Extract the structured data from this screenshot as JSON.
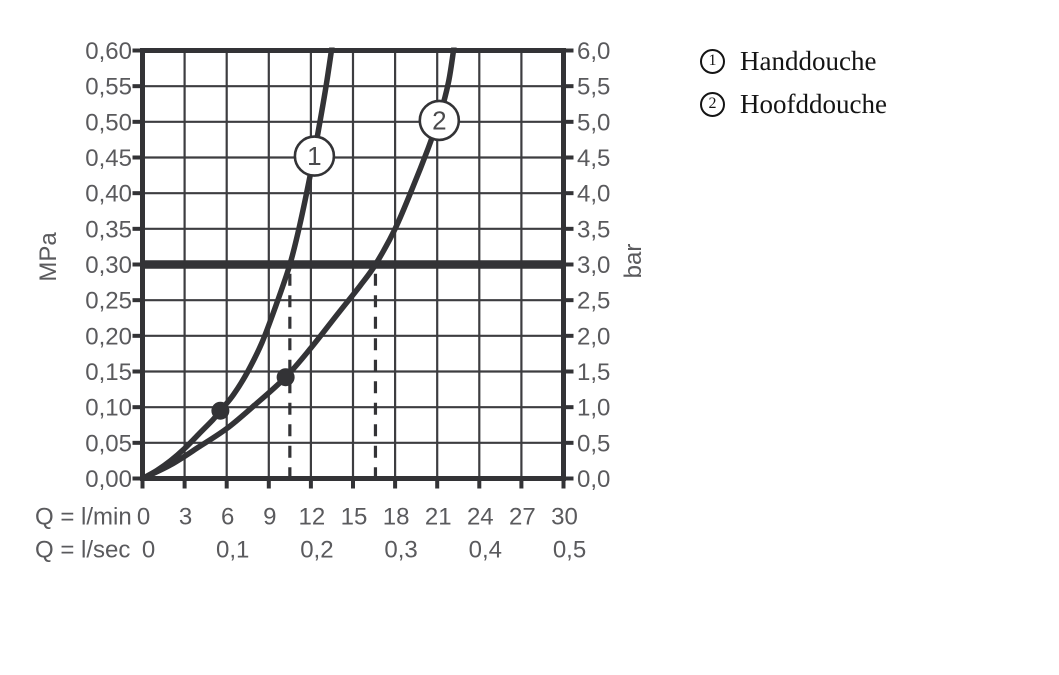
{
  "legend": {
    "items": [
      {
        "marker": "1",
        "label": "Handdouche"
      },
      {
        "marker": "2",
        "label": "Hoofddouche"
      }
    ]
  },
  "chart_data": {
    "type": "line",
    "title": "",
    "x_axis": {
      "label_primary": "Q = l/min",
      "label_secondary": "Q = l/sec",
      "min": 0,
      "max": 30,
      "step": 3,
      "ticks_primary": [
        "0",
        "3",
        "6",
        "9",
        "12",
        "15",
        "18",
        "21",
        "24",
        "27",
        "30"
      ],
      "ticks_secondary": [
        {
          "text": "0",
          "q": 0
        },
        {
          "text": "0,1",
          "q": 6
        },
        {
          "text": "0,2",
          "q": 12
        },
        {
          "text": "0,3",
          "q": 18
        },
        {
          "text": "0,4",
          "q": 24
        },
        {
          "text": "0,5",
          "q": 30
        }
      ]
    },
    "y_axis_left": {
      "label": "MPa",
      "min": 0,
      "max": 0.6,
      "step": 0.05,
      "tick_labels": [
        "0,00",
        "0,05",
        "0,10",
        "0,15",
        "0,20",
        "0,25",
        "0,30",
        "0,35",
        "0,40",
        "0,45",
        "0,50",
        "0,55",
        "0,60"
      ]
    },
    "y_axis_right": {
      "label": "bar",
      "min": 0,
      "max": 6,
      "step": 0.5,
      "tick_labels": [
        "0,0",
        "0,5",
        "1,0",
        "1,5",
        "2,0",
        "2,5",
        "3,0",
        "3,5",
        "4,0",
        "4,5",
        "5,0",
        "5,5",
        "6,0"
      ]
    },
    "reference_line": {
      "y_mpa": 0.3,
      "y_bar": 3.0
    },
    "grid": true,
    "legend_position": "top-right",
    "series": [
      {
        "name": "Handdouche",
        "marker": "1",
        "marker_at": [
          12.25,
          0.452
        ],
        "dot_at": [
          5.55,
          0.095
        ],
        "dashed_line_x": 10.5,
        "points": [
          [
            0,
            0
          ],
          [
            1,
            0.011
          ],
          [
            2,
            0.025
          ],
          [
            3,
            0.042
          ],
          [
            4,
            0.062
          ],
          [
            5,
            0.082
          ],
          [
            5.55,
            0.095
          ],
          [
            6.5,
            0.118
          ],
          [
            7.5,
            0.15
          ],
          [
            8.5,
            0.19
          ],
          [
            9.5,
            0.242
          ],
          [
            10.5,
            0.3
          ],
          [
            11.2,
            0.355
          ],
          [
            12,
            0.43
          ],
          [
            12.6,
            0.495
          ],
          [
            13.1,
            0.552
          ],
          [
            13.5,
            0.605
          ]
        ]
      },
      {
        "name": "Hoofddouche",
        "marker": "2",
        "marker_at": [
          21.15,
          0.502
        ],
        "dot_at": [
          10.2,
          0.142
        ],
        "dashed_line_x": 16.6,
        "points": [
          [
            0,
            0
          ],
          [
            2,
            0.019
          ],
          [
            4,
            0.044
          ],
          [
            6,
            0.07
          ],
          [
            8,
            0.103
          ],
          [
            10.2,
            0.142
          ],
          [
            12,
            0.183
          ],
          [
            14,
            0.233
          ],
          [
            15.5,
            0.27
          ],
          [
            16.6,
            0.3
          ],
          [
            18,
            0.35
          ],
          [
            19.3,
            0.41
          ],
          [
            20.3,
            0.46
          ],
          [
            21.2,
            0.51
          ],
          [
            21.8,
            0.555
          ],
          [
            22.2,
            0.605
          ]
        ]
      }
    ],
    "colors": {
      "ink": "#333336",
      "grid": "#3d3d40",
      "labels": "#5a5a5d",
      "legend_text": "#141414",
      "background": "#ffffff"
    }
  }
}
